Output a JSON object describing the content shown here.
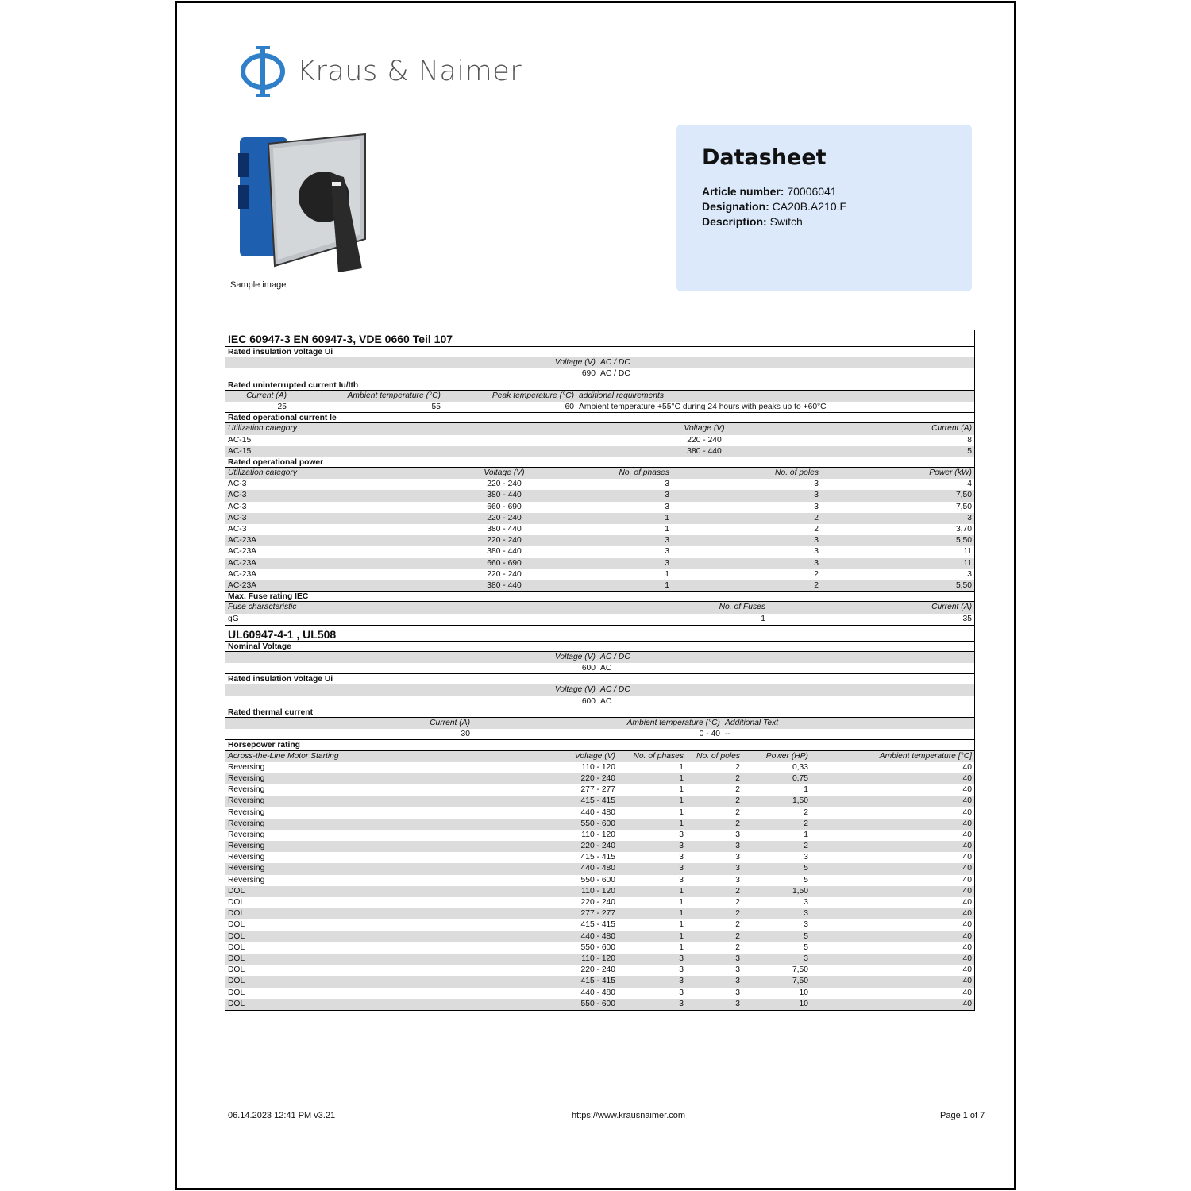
{
  "brand": {
    "name": "Kraus & Naimer",
    "color": "#2f80c9"
  },
  "sample_caption": "Sample image",
  "info": {
    "title": "Datasheet",
    "article_label": "Article number:",
    "article": "70006041",
    "designation_label": "Designation:",
    "designation": "CA20B.A210.E",
    "description_label": "Description:",
    "description": "Switch"
  },
  "standards": [
    {
      "title": "IEC 60947-3 EN 60947-3, VDE 0660 Teil 107",
      "sections": [
        {
          "title": "Rated insulation voltage Ui",
          "cols": [
            "469px",
            "1fr"
          ],
          "align": [
            "r",
            "l"
          ],
          "header": [
            "Voltage (V)",
            "AC / DC"
          ],
          "rows": [
            [
              "690",
              "AC / DC"
            ]
          ]
        },
        {
          "title": "Rated uninterrupted current Iu/Ith",
          "cols": [
            "80px",
            "194px",
            "168px",
            "1fr"
          ],
          "align": [
            "r",
            "r",
            "r",
            "l"
          ],
          "header": [
            "Current (A)",
            "Ambient temperature (°C)",
            "Peak temperature (°C)",
            "additional requirements"
          ],
          "rows": [
            [
              "25",
              "55",
              "60",
              "Ambient temperature +55°C during 24 hours with peaks up to +60°C"
            ]
          ]
        },
        {
          "title": "Rated operational current Ie",
          "cols": [
            "560px",
            "86px",
            "1fr"
          ],
          "align": [
            "l",
            "c",
            "r"
          ],
          "header": [
            "Utilization category",
            "Voltage (V)",
            "Current (A)"
          ],
          "rows": [
            [
              "AC-15",
              "220 - 240",
              "8"
            ],
            [
              "AC-15",
              "380 - 440",
              "5"
            ]
          ]
        },
        {
          "title": "Rated operational power",
          "cols": [
            "310px",
            "82px",
            "170px",
            "188px",
            "1fr"
          ],
          "align": [
            "l",
            "c",
            "r",
            "r",
            "r"
          ],
          "header": [
            "Utilization category",
            "Voltage (V)",
            "No. of phases",
            "No. of poles",
            "Power (kW)"
          ],
          "rows": [
            [
              "AC-3",
              "220 - 240",
              "3",
              "3",
              "4"
            ],
            [
              "AC-3",
              "380 - 440",
              "3",
              "3",
              "7,50"
            ],
            [
              "AC-3",
              "660 - 690",
              "3",
              "3",
              "7,50"
            ],
            [
              "AC-3",
              "220 - 240",
              "1",
              "2",
              "3"
            ],
            [
              "AC-3",
              "380 - 440",
              "1",
              "2",
              "3,70"
            ],
            [
              "AC-23A",
              "220 - 240",
              "3",
              "3",
              "5,50"
            ],
            [
              "AC-23A",
              "380 - 440",
              "3",
              "3",
              "11"
            ],
            [
              "AC-23A",
              "660 - 690",
              "3",
              "3",
              "11"
            ],
            [
              "AC-23A",
              "220 - 240",
              "1",
              "2",
              "3"
            ],
            [
              "AC-23A",
              "380 - 440",
              "1",
              "2",
              "5,50"
            ]
          ]
        },
        {
          "title": "Max. Fuse rating IEC",
          "cols": [
            "600px",
            "83px",
            "1fr"
          ],
          "align": [
            "l",
            "r",
            "r"
          ],
          "header": [
            "Fuse characteristic",
            "No. of Fuses",
            "Current (A)"
          ],
          "rows": [
            [
              "gG",
              "1",
              "35"
            ]
          ]
        }
      ]
    },
    {
      "title": "UL60947-4-1 , UL508",
      "sections": [
        {
          "title": "Nominal Voltage",
          "cols": [
            "469px",
            "1fr"
          ],
          "align": [
            "r",
            "l"
          ],
          "header": [
            "Voltage (V)",
            "AC / DC"
          ],
          "rows": [
            [
              "600",
              "AC"
            ]
          ]
        },
        {
          "title": "Rated insulation voltage Ui",
          "cols": [
            "469px",
            "1fr"
          ],
          "align": [
            "r",
            "l"
          ],
          "header": [
            "Voltage (V)",
            "AC / DC"
          ],
          "rows": [
            [
              "600",
              "AC"
            ]
          ]
        },
        {
          "title": "Rated thermal current",
          "cols": [
            "311px",
            "315px",
            "1fr"
          ],
          "align": [
            "r",
            "r",
            "l"
          ],
          "header": [
            "Current (A)",
            "Ambient temperature (°C)",
            "Additional Text"
          ],
          "rows": [
            [
              "30",
              "0 - 40",
              "--"
            ]
          ]
        },
        {
          "title": "Horsepower rating",
          "cols": [
            "420px",
            "74px",
            "86px",
            "71px",
            "86px",
            "1fr"
          ],
          "align": [
            "l",
            "r",
            "r",
            "r",
            "r",
            "r"
          ],
          "header": [
            "Across-the-Line Motor Starting",
            "Voltage (V)",
            "No. of phases",
            "No. of poles",
            "Power (HP)",
            "Ambient temperature [°C]"
          ],
          "rows": [
            [
              "Reversing",
              "110 - 120",
              "1",
              "2",
              "0,33",
              "40"
            ],
            [
              "Reversing",
              "220 - 240",
              "1",
              "2",
              "0,75",
              "40"
            ],
            [
              "Reversing",
              "277 - 277",
              "1",
              "2",
              "1",
              "40"
            ],
            [
              "Reversing",
              "415 - 415",
              "1",
              "2",
              "1,50",
              "40"
            ],
            [
              "Reversing",
              "440 - 480",
              "1",
              "2",
              "2",
              "40"
            ],
            [
              "Reversing",
              "550 - 600",
              "1",
              "2",
              "2",
              "40"
            ],
            [
              "Reversing",
              "110 - 120",
              "3",
              "3",
              "1",
              "40"
            ],
            [
              "Reversing",
              "220 - 240",
              "3",
              "3",
              "2",
              "40"
            ],
            [
              "Reversing",
              "415 - 415",
              "3",
              "3",
              "3",
              "40"
            ],
            [
              "Reversing",
              "440 - 480",
              "3",
              "3",
              "5",
              "40"
            ],
            [
              "Reversing",
              "550 - 600",
              "3",
              "3",
              "5",
              "40"
            ],
            [
              "DOL",
              "110 - 120",
              "1",
              "2",
              "1,50",
              "40"
            ],
            [
              "DOL",
              "220 - 240",
              "1",
              "2",
              "3",
              "40"
            ],
            [
              "DOL",
              "277 - 277",
              "1",
              "2",
              "3",
              "40"
            ],
            [
              "DOL",
              "415 - 415",
              "1",
              "2",
              "3",
              "40"
            ],
            [
              "DOL",
              "440 - 480",
              "1",
              "2",
              "5",
              "40"
            ],
            [
              "DOL",
              "550 - 600",
              "1",
              "2",
              "5",
              "40"
            ],
            [
              "DOL",
              "110 - 120",
              "3",
              "3",
              "3",
              "40"
            ],
            [
              "DOL",
              "220 - 240",
              "3",
              "3",
              "7,50",
              "40"
            ],
            [
              "DOL",
              "415 - 415",
              "3",
              "3",
              "7,50",
              "40"
            ],
            [
              "DOL",
              "440 - 480",
              "3",
              "3",
              "10",
              "40"
            ],
            [
              "DOL",
              "550 - 600",
              "3",
              "3",
              "10",
              "40"
            ]
          ]
        }
      ]
    }
  ],
  "footer": {
    "timestamp": "06.14.2023 12:41 PM v3.21",
    "url": "https://www.krausnaimer.com",
    "page": "Page 1 of  7"
  }
}
